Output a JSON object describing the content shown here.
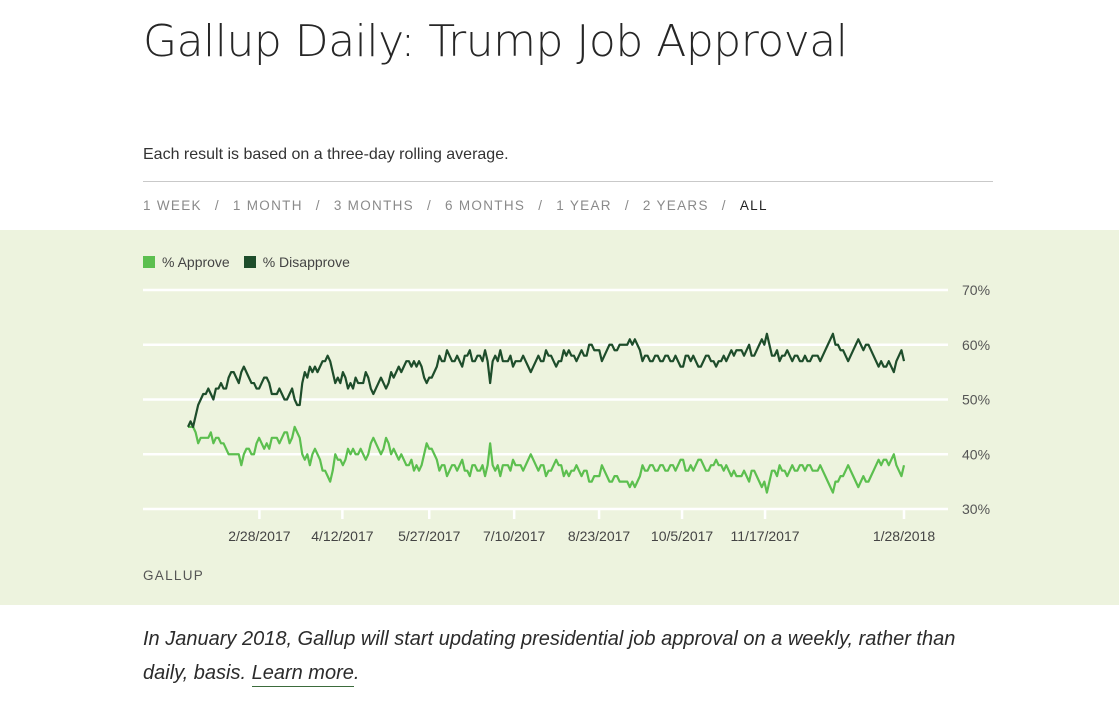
{
  "header": {
    "title": "Gallup Daily: Trump Job Approval",
    "subtitle": "Each result is based on a three-day rolling average."
  },
  "ranges": {
    "items": [
      "1 WEEK",
      "1 MONTH",
      "3 MONTHS",
      "6 MONTHS",
      "1 YEAR",
      "2 YEARS",
      "ALL"
    ],
    "separator": "/",
    "active": "ALL"
  },
  "legend": {
    "approve": "% Approve",
    "disapprove": "% Disapprove"
  },
  "source": "GALLUP",
  "note": {
    "text": "In January 2018, Gallup will start updating presidential job approval on a weekly, rather than daily, basis.",
    "link": "Learn more",
    "end": "."
  },
  "colors": {
    "approve": "#5cbf4f",
    "disapprove": "#1e4d2b",
    "panel": "#edf3de",
    "grid": "#ffffff"
  },
  "chart_data": {
    "type": "line",
    "title": "Gallup Daily: Trump Job Approval",
    "xlabel": "",
    "ylabel": "",
    "ylim": [
      30,
      70
    ],
    "yticks": [
      "30%",
      "40%",
      "50%",
      "60%",
      "70%"
    ],
    "x_range": [
      "1/22/2017",
      "1/28/2018"
    ],
    "xticks": [
      "2/28/2017",
      "4/12/2017",
      "5/27/2017",
      "7/10/2017",
      "8/23/2017",
      "10/5/2017",
      "11/17/2017",
      "1/28/2018"
    ],
    "grid": true,
    "legend_position": "top-left",
    "series": [
      {
        "name": "% Approve",
        "values": [
          45,
          45,
          45,
          44,
          42,
          43,
          43,
          43,
          43,
          44,
          42,
          43,
          43,
          42,
          42,
          41,
          40,
          40,
          40,
          40,
          40,
          38,
          40,
          41,
          41,
          40,
          40,
          42,
          43,
          42,
          41,
          42,
          41,
          43,
          43,
          43,
          42,
          43,
          44,
          44,
          42,
          43,
          45,
          44,
          43,
          40,
          39,
          40,
          38,
          40,
          41,
          40,
          39,
          37,
          37,
          36,
          35,
          37,
          40,
          39,
          39,
          38,
          39,
          41,
          40,
          41,
          40,
          40,
          41,
          40,
          39,
          40,
          42,
          43,
          42,
          41,
          40,
          41,
          43,
          42,
          40,
          41,
          40,
          39,
          40,
          39,
          38,
          38,
          39,
          37,
          38,
          37,
          38,
          40,
          42,
          41,
          41,
          40,
          39,
          37,
          38,
          38,
          36,
          37,
          38,
          38,
          37,
          38,
          39,
          37,
          37,
          36,
          38,
          38,
          37,
          37,
          38,
          36,
          38,
          42,
          38,
          37,
          38,
          36,
          38,
          38,
          38,
          37,
          39,
          38,
          38,
          38,
          37,
          38,
          39,
          40,
          39,
          38,
          37,
          38,
          38,
          36,
          37,
          37,
          38,
          39,
          38,
          38,
          36,
          37,
          36,
          37,
          37,
          38,
          37,
          36,
          37,
          37,
          35,
          35,
          36,
          36,
          36,
          38,
          37,
          36,
          35,
          35,
          36,
          36,
          35,
          35,
          35,
          35,
          34,
          35,
          34,
          35,
          36,
          38,
          37,
          37,
          38,
          38,
          37,
          37,
          38,
          38,
          37,
          37,
          38,
          38,
          37,
          38,
          39,
          39,
          37,
          37,
          38,
          37,
          38,
          39,
          39,
          38,
          37,
          37,
          38,
          38,
          39,
          38,
          38,
          37,
          38,
          37,
          36,
          37,
          36,
          36,
          36,
          37,
          36,
          35,
          37,
          37,
          36,
          35,
          34,
          35,
          33,
          35,
          37,
          37,
          36,
          38,
          37,
          37,
          36,
          37,
          38,
          37,
          37,
          38,
          38,
          37,
          38,
          38,
          37,
          37,
          37,
          38,
          37,
          36,
          35,
          34,
          33,
          35,
          35,
          36,
          36,
          37,
          38,
          37,
          36,
          35,
          34,
          35,
          36,
          35,
          35,
          36,
          37,
          38,
          39,
          38,
          39,
          39,
          38,
          39,
          40,
          38,
          37,
          36,
          38
        ],
        "color": "#5cbf4f"
      },
      {
        "name": "% Disapprove",
        "values": [
          45,
          46,
          45,
          47,
          49,
          50,
          51,
          51,
          52,
          51,
          50,
          52,
          52,
          53,
          52,
          52,
          54,
          55,
          55,
          54,
          53,
          55,
          56,
          55,
          54,
          53,
          53,
          52,
          52,
          53,
          54,
          54,
          53,
          51,
          51,
          51,
          52,
          51,
          50,
          50,
          51,
          52,
          50,
          49,
          49,
          53,
          55,
          54,
          56,
          55,
          56,
          55,
          56,
          57,
          57,
          58,
          57,
          55,
          53,
          54,
          53,
          55,
          54,
          52,
          53,
          52,
          54,
          53,
          53,
          53,
          55,
          54,
          52,
          51,
          52,
          53,
          54,
          53,
          52,
          53,
          55,
          54,
          55,
          56,
          55,
          56,
          57,
          57,
          56,
          57,
          56,
          57,
          56,
          54,
          53,
          54,
          54,
          55,
          56,
          58,
          57,
          57,
          59,
          58,
          57,
          57,
          58,
          57,
          56,
          58,
          58,
          59,
          57,
          57,
          58,
          58,
          57,
          59,
          57,
          53,
          57,
          58,
          57,
          59,
          57,
          57,
          57,
          58,
          56,
          57,
          57,
          57,
          58,
          57,
          56,
          55,
          56,
          57,
          58,
          57,
          57,
          59,
          58,
          58,
          57,
          56,
          57,
          57,
          59,
          58,
          59,
          58,
          58,
          57,
          58,
          59,
          58,
          58,
          60,
          60,
          59,
          59,
          59,
          57,
          58,
          59,
          60,
          60,
          59,
          59,
          60,
          60,
          60,
          60,
          61,
          60,
          61,
          60,
          59,
          57,
          58,
          58,
          57,
          57,
          58,
          58,
          57,
          57,
          58,
          58,
          57,
          57,
          58,
          57,
          56,
          56,
          58,
          58,
          57,
          58,
          57,
          56,
          56,
          57,
          58,
          58,
          57,
          57,
          56,
          57,
          57,
          58,
          57,
          58,
          59,
          58,
          59,
          59,
          59,
          58,
          59,
          60,
          58,
          58,
          59,
          60,
          61,
          60,
          62,
          60,
          58,
          58,
          59,
          57,
          58,
          58,
          59,
          58,
          57,
          58,
          58,
          57,
          57,
          58,
          57,
          57,
          58,
          58,
          58,
          57,
          58,
          59,
          60,
          61,
          62,
          60,
          60,
          59,
          59,
          58,
          57,
          58,
          59,
          60,
          61,
          60,
          59,
          60,
          60,
          59,
          58,
          57,
          56,
          57,
          56,
          56,
          57,
          56,
          55,
          57,
          58,
          59,
          57
        ],
        "color": "#1e4d2b"
      }
    ]
  }
}
